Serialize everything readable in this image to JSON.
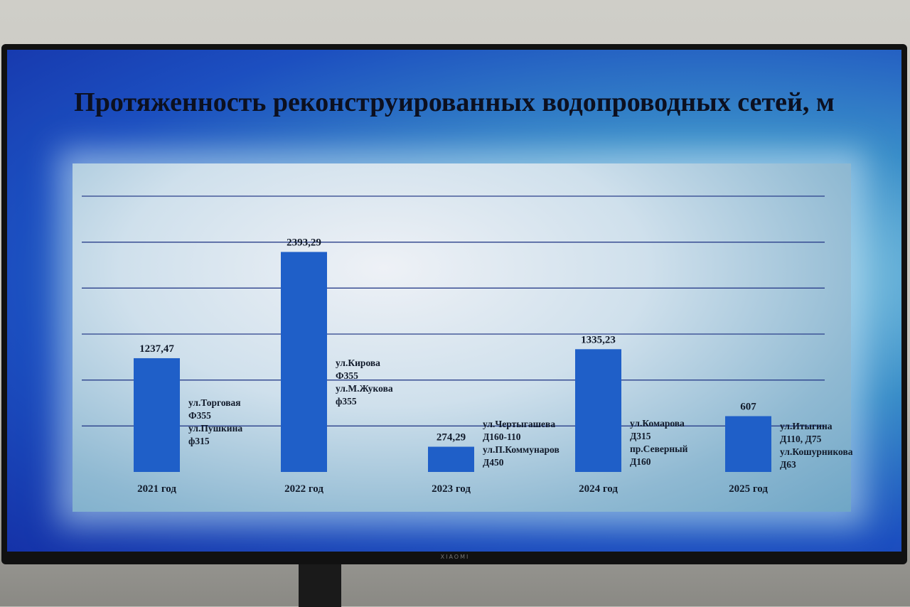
{
  "chart_data": {
    "type": "bar",
    "title": "Протяженность реконструированных водопроводных сетей, м",
    "categories": [
      "2021 год",
      "2022 год",
      "2023 год",
      "2024 год",
      "2025 год"
    ],
    "values": [
      1237.47,
      2393.29,
      274.29,
      1335.23,
      607
    ],
    "data_labels": [
      "1237,47",
      "2393,29",
      "274,29",
      "1335,23",
      "607"
    ],
    "annotations": [
      [
        "ул.Торговая",
        "Ф355",
        "ул.Пушкина",
        "ф315"
      ],
      [
        "ул.Кирова",
        "Ф355",
        "ул.М.Жукова",
        "ф355"
      ],
      [
        "ул.Чертыгашева",
        "Д160-110",
        "ул.П.Коммунаров",
        "Д450"
      ],
      [
        "ул.Комарова",
        "Д315",
        "пр.Северный",
        "Д160"
      ],
      [
        "ул.Итыгина",
        "Д110, Д75",
        "ул.Кошурникова",
        "Д63"
      ]
    ],
    "ylim": [
      0,
      3000
    ],
    "grid": true,
    "bar_color": "#1f5fc8"
  },
  "monitor": {
    "brand": "XIAOMI"
  }
}
